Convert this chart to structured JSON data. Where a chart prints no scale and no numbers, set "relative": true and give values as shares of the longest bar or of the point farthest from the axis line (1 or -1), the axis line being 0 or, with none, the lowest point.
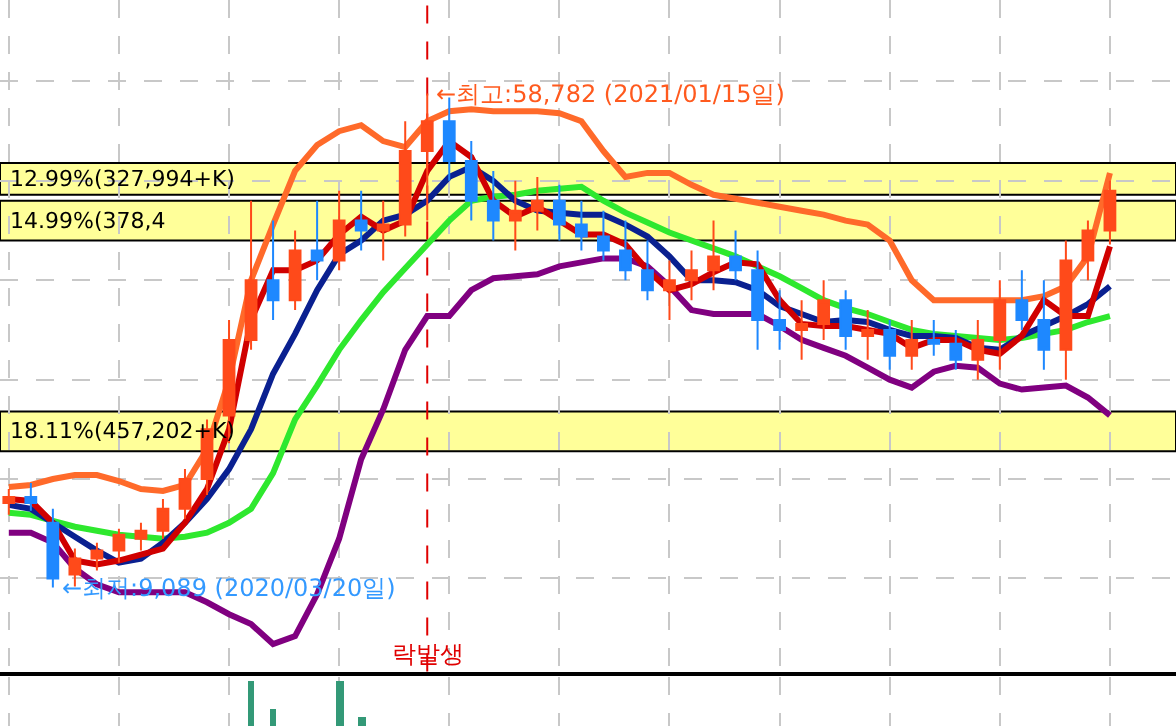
{
  "chart_data": [
    {
      "type": "candlestick",
      "categories": [
        null,
        null,
        null,
        null,
        null,
        null,
        null,
        null,
        null,
        null,
        null,
        null,
        null,
        null,
        null,
        null,
        null,
        null,
        null,
        null,
        null,
        null,
        null,
        null,
        null,
        null,
        null,
        null,
        null,
        null,
        null,
        null,
        null,
        null,
        null,
        null,
        null,
        null,
        null,
        null,
        null,
        null,
        null,
        null,
        null,
        null,
        null,
        null,
        null,
        null,
        null
      ],
      "ohlc": [
        [
          17600,
          19000,
          16400,
          18200
        ],
        [
          18200,
          19600,
          16800,
          17600
        ],
        [
          15600,
          17000,
          9089,
          10000
        ],
        [
          10400,
          13000,
          9200,
          12000
        ],
        [
          12000,
          13600,
          10800,
          12800
        ],
        [
          12800,
          15000,
          11600,
          14400
        ],
        [
          14000,
          15600,
          12800,
          14800
        ],
        [
          14800,
          18000,
          14000,
          17000
        ],
        [
          17000,
          21000,
          16000,
          20000
        ],
        [
          20000,
          26000,
          18400,
          25000
        ],
        [
          26400,
          36000,
          23600,
          34000
        ],
        [
          34000,
          48000,
          33000,
          40000
        ],
        [
          40000,
          46000,
          36000,
          38000
        ],
        [
          38000,
          45000,
          37000,
          43000
        ],
        [
          43000,
          48000,
          40000,
          42000
        ],
        [
          42000,
          49000,
          41000,
          46000
        ],
        [
          46000,
          49000,
          43000,
          45000
        ],
        [
          45000,
          48000,
          42000,
          45600
        ],
        [
          45600,
          56000,
          44400,
          53000
        ],
        [
          53000,
          58782,
          46000,
          56000
        ],
        [
          56000,
          58400,
          50000,
          52000
        ],
        [
          52000,
          54000,
          46000,
          48000
        ],
        [
          48000,
          51000,
          44000,
          46000
        ],
        [
          46000,
          50000,
          43000,
          47000
        ],
        [
          47000,
          50400,
          45000,
          48000
        ],
        [
          48000,
          49600,
          44000,
          45600
        ],
        [
          45600,
          48000,
          43000,
          44400
        ],
        [
          44400,
          47000,
          42000,
          43000
        ],
        [
          43000,
          46000,
          40000,
          41000
        ],
        [
          41000,
          44000,
          38000,
          39000
        ],
        [
          39000,
          42000,
          36000,
          40000
        ],
        [
          40000,
          43000,
          38000,
          41000
        ],
        [
          41000,
          46000,
          39000,
          42400
        ],
        [
          42400,
          45000,
          40000,
          41000
        ],
        [
          41000,
          43000,
          33000,
          36000
        ],
        [
          36000,
          39000,
          33000,
          35000
        ],
        [
          35000,
          38000,
          32000,
          35600
        ],
        [
          35600,
          40000,
          34000,
          38000
        ],
        [
          38000,
          39000,
          33000,
          34400
        ],
        [
          34400,
          37000,
          32000,
          35000
        ],
        [
          35000,
          36000,
          31000,
          32400
        ],
        [
          32400,
          36000,
          31000,
          34000
        ],
        [
          34000,
          36000,
          32400,
          33600
        ],
        [
          33600,
          35000,
          31000,
          32000
        ],
        [
          32000,
          36000,
          30000,
          34000
        ],
        [
          34000,
          40000,
          31000,
          38000
        ],
        [
          38000,
          41000,
          35000,
          36000
        ],
        [
          36000,
          40000,
          31000,
          33000
        ],
        [
          33000,
          44000,
          30000,
          42000
        ],
        [
          42000,
          46000,
          40000,
          45000
        ],
        [
          45000,
          50000,
          43600,
          49000
        ]
      ],
      "colors": [
        "#ff4a1a",
        "#1e88ff",
        "#1e88ff",
        "#ff4a1a",
        "#ff4a1a",
        "#ff4a1a",
        "#ff4a1a",
        "#ff4a1a",
        "#ff4a1a",
        "#ff4a1a",
        "#ff4a1a",
        "#ff4a1a",
        "#1e88ff",
        "#ff4a1a",
        "#1e88ff",
        "#ff4a1a",
        "#1e88ff",
        "#ff4a1a",
        "#ff4a1a",
        "#ff4a1a",
        "#1e88ff",
        "#1e88ff",
        "#1e88ff",
        "#ff4a1a",
        "#ff4a1a",
        "#1e88ff",
        "#1e88ff",
        "#1e88ff",
        "#1e88ff",
        "#1e88ff",
        "#ff4a1a",
        "#ff4a1a",
        "#ff4a1a",
        "#1e88ff",
        "#1e88ff",
        "#1e88ff",
        "#ff4a1a",
        "#ff4a1a",
        "#1e88ff",
        "#ff4a1a",
        "#1e88ff",
        "#ff4a1a",
        "#1e88ff",
        "#1e88ff",
        "#ff4a1a",
        "#ff4a1a",
        "#1e88ff",
        "#1e88ff",
        "#ff4a1a",
        "#ff4a1a",
        "#ff4a1a"
      ],
      "series": [
        {
          "type": "line",
          "color": "#ff6a2a",
          "values": [
            19200,
            19400,
            20000,
            20400,
            20400,
            19800,
            19000,
            18800,
            19400,
            23000,
            30000,
            40000,
            45600,
            51000,
            53600,
            55000,
            55600,
            54000,
            53400,
            56000,
            57000,
            57200,
            57000,
            57000,
            57000,
            56800,
            56000,
            53000,
            50400,
            50800,
            50800,
            49600,
            48600,
            48200,
            47800,
            47400,
            47000,
            46600,
            46000,
            45600,
            44000,
            40000,
            38000,
            38000,
            38000,
            38000,
            38000,
            38400,
            39400,
            42400,
            50800
          ]
        },
        {
          "type": "line",
          "color": "#800080",
          "values": [
            14600,
            14600,
            13600,
            11000,
            9400,
            8600,
            8600,
            8600,
            8600,
            7600,
            6400,
            5400,
            3400,
            4200,
            8400,
            14000,
            22000,
            27000,
            33000,
            36400,
            36400,
            39000,
            40200,
            40400,
            40600,
            41400,
            41800,
            42200,
            42200,
            41400,
            39400,
            37000,
            36600,
            36600,
            36600,
            35400,
            34000,
            33200,
            32400,
            31200,
            30000,
            29200,
            30800,
            31400,
            31200,
            29600,
            29000,
            29200,
            29400,
            28200,
            26400
          ]
        },
        {
          "type": "line",
          "color": "#2ee82e",
          "values": [
            16600,
            16400,
            15800,
            15200,
            14800,
            14400,
            14200,
            14000,
            14200,
            14600,
            15600,
            17000,
            20600,
            26000,
            29400,
            33000,
            36000,
            38800,
            41200,
            43600,
            46000,
            48000,
            48400,
            48600,
            49000,
            49200,
            49400,
            48000,
            46800,
            45800,
            44800,
            44000,
            43200,
            42400,
            41400,
            40400,
            39200,
            38000,
            37200,
            36600,
            35800,
            35000,
            34600,
            34400,
            34200,
            34000,
            34200,
            34600,
            35000,
            35800,
            36400
          ]
        },
        {
          "type": "line",
          "color": "#0a2090",
          "values": [
            17400,
            17000,
            15600,
            14200,
            12800,
            11600,
            12000,
            13600,
            15600,
            18000,
            21000,
            25000,
            30600,
            34600,
            39000,
            42600,
            44000,
            46000,
            46600,
            48000,
            50400,
            51400,
            50000,
            48000,
            47000,
            46800,
            46600,
            46600,
            45600,
            44400,
            42400,
            40000,
            40000,
            39800,
            39000,
            37400,
            36600,
            35800,
            36000,
            35800,
            35000,
            34400,
            34400,
            34200,
            33200,
            33000,
            34400,
            35400,
            36400,
            37600,
            39400
          ]
        },
        {
          "type": "line",
          "color": "#d00000",
          "values": [
            18000,
            17800,
            15600,
            11800,
            11400,
            11800,
            12400,
            13000,
            15600,
            19000,
            25000,
            36000,
            41000,
            41000,
            42000,
            44600,
            46400,
            45000,
            46000,
            51000,
            54000,
            52400,
            48000,
            46400,
            47400,
            46000,
            44600,
            44600,
            43600,
            41000,
            39000,
            39600,
            40800,
            41800,
            41600,
            38000,
            35600,
            35400,
            35400,
            35000,
            34600,
            33200,
            34000,
            34000,
            33000,
            32600,
            34400,
            38000,
            36400,
            36400,
            43400
          ]
        }
      ],
      "bands": [
        {
          "axis": "y",
          "from": 48600,
          "to": 51800,
          "label": "12.99%(327,994+K)",
          "color": "#ffff99"
        },
        {
          "axis": "y",
          "from": 44000,
          "to": 48000,
          "label": "14.99%(378,4",
          "color": "#ffff99"
        },
        {
          "axis": "y",
          "from": 22800,
          "to": 26800,
          "label": "18.11%(457,202+K)",
          "color": "#ffff99"
        }
      ],
      "annotations": [
        "←최고:58,782 (2021/01/15일)",
        "←최저:9,089 (2020/03/20일)",
        "락발생"
      ],
      "grid": true,
      "tick_labels": false
    },
    {
      "type": "bar",
      "categories": [
        null,
        null,
        null,
        null,
        null,
        null,
        null,
        null,
        null,
        null,
        null,
        null,
        null,
        null,
        null,
        null,
        null,
        null,
        null,
        null,
        null,
        null,
        null,
        null,
        null,
        null,
        null,
        null,
        null,
        null,
        null,
        null,
        null,
        null,
        null,
        null,
        null,
        null,
        null,
        null,
        null,
        null,
        null,
        null,
        null,
        null,
        null,
        null,
        null,
        null,
        null
      ],
      "values": [
        null,
        null,
        null,
        null,
        null,
        null,
        null,
        null,
        null,
        null,
        null,
        1,
        0.4,
        null,
        null,
        1,
        0.2,
        null,
        null,
        null,
        null,
        null,
        null,
        null,
        null,
        null,
        null,
        null,
        null,
        null,
        null,
        null,
        null,
        null,
        null,
        null,
        null,
        null,
        null,
        null,
        null,
        null,
        null,
        null,
        null,
        null,
        null,
        null,
        null,
        null,
        null
      ],
      "color": "#339977",
      "relative": true,
      "grid": true,
      "tick_labels": false
    }
  ]
}
